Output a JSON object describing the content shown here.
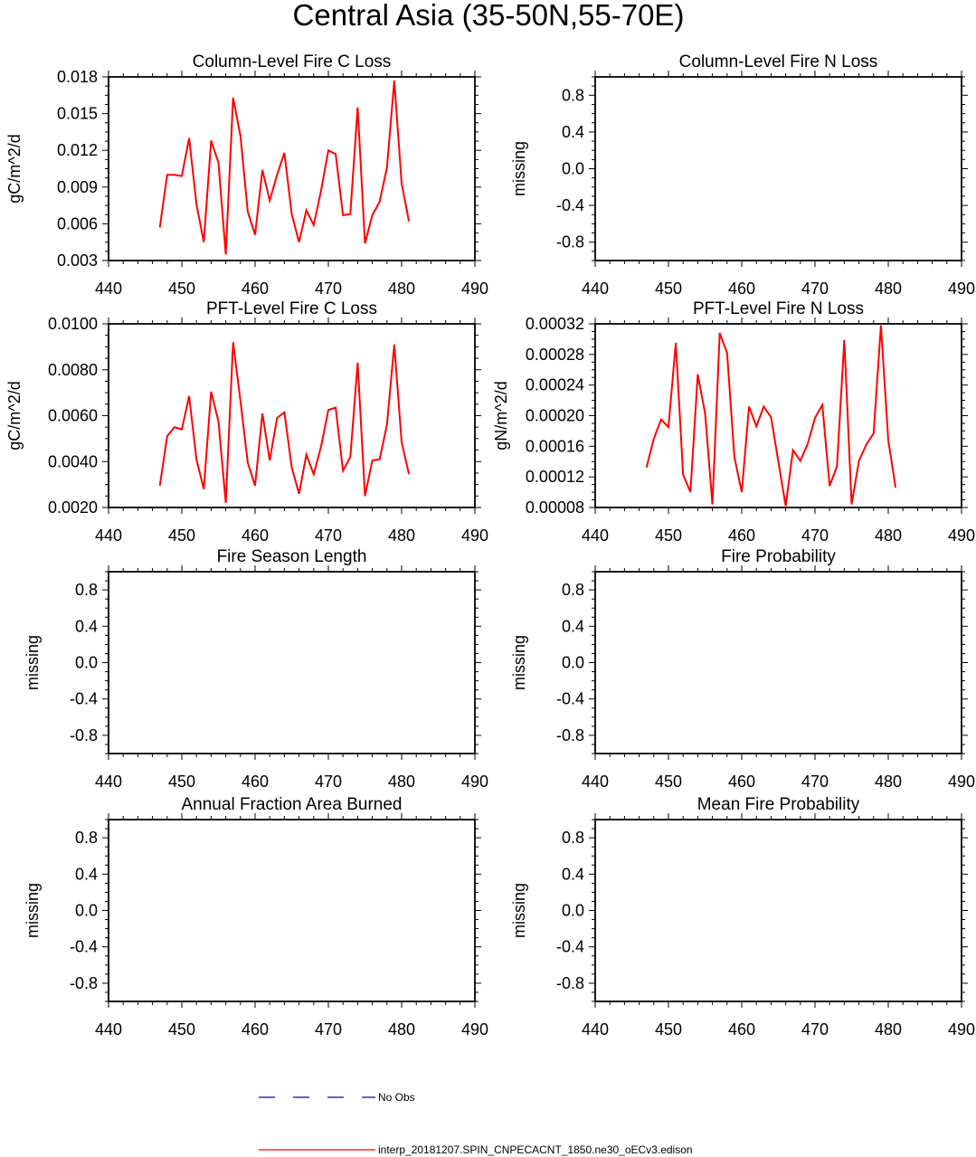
{
  "page_title": "Central Asia (35-50N,55-70E)",
  "legend": [
    {
      "label": "No Obs",
      "color": "#0000cc",
      "dash": true
    },
    {
      "label": "interp_20181207.SPIN_CNPECACNT_1850.ne30_oECv3.edison",
      "color": "#ff0000",
      "dash": false
    }
  ],
  "chart_data": [
    {
      "type": "line",
      "title": "Column-Level Fire C Loss",
      "ylabel": "gC/m^2/d",
      "xlim": [
        440,
        490
      ],
      "xticks": [
        440,
        450,
        460,
        470,
        480,
        490
      ],
      "ylim": [
        0.003,
        0.018
      ],
      "yticks": [
        0.003,
        0.006,
        0.009,
        0.012,
        0.015,
        0.018
      ],
      "ytick_labels": [
        "0.003",
        "0.006",
        "0.009",
        "0.012",
        "0.015",
        "0.018"
      ],
      "grid": false,
      "series": [
        {
          "color": "#ff0000",
          "x": [
            447,
            448,
            449,
            450,
            451,
            452,
            453,
            454,
            455,
            456,
            457,
            458,
            459,
            460,
            461,
            462,
            463,
            464,
            465,
            466,
            467,
            468,
            469,
            470,
            471,
            472,
            473,
            474,
            475,
            476,
            477,
            478,
            479,
            480,
            481
          ],
          "y": [
            0.0057,
            0.01,
            0.01,
            0.0099,
            0.013,
            0.0076,
            0.0045,
            0.0128,
            0.011,
            0.0035,
            0.0163,
            0.0132,
            0.007,
            0.0051,
            0.0104,
            0.0079,
            0.01,
            0.0118,
            0.0068,
            0.0045,
            0.0071,
            0.0059,
            0.0087,
            0.012,
            0.0117,
            0.0067,
            0.0068,
            0.0155,
            0.0044,
            0.0067,
            0.0078,
            0.0106,
            0.0177,
            0.0093,
            0.0062
          ]
        }
      ]
    },
    {
      "type": "line",
      "title": "Column-Level Fire N Loss",
      "ylabel": "missing",
      "xlim": [
        440,
        490
      ],
      "xticks": [
        440,
        450,
        460,
        470,
        480,
        490
      ],
      "ylim": [
        -1,
        1
      ],
      "yticks": [
        -0.8,
        -0.4,
        0.0,
        0.4,
        0.8
      ],
      "ytick_labels": [
        "-0.8",
        "-0.4",
        "0.0",
        "0.4",
        "0.8"
      ],
      "grid": false,
      "series": []
    },
    {
      "type": "line",
      "title": "PFT-Level Fire C Loss",
      "ylabel": "gC/m^2/d",
      "xlim": [
        440,
        490
      ],
      "xticks": [
        440,
        450,
        460,
        470,
        480,
        490
      ],
      "ylim": [
        0.002,
        0.01
      ],
      "yticks": [
        0.002,
        0.004,
        0.006,
        0.008,
        0.01
      ],
      "ytick_labels": [
        "0.0020",
        "0.0040",
        "0.0060",
        "0.0080",
        "0.0100"
      ],
      "grid": false,
      "series": [
        {
          "color": "#ff0000",
          "x": [
            447,
            448,
            449,
            450,
            451,
            452,
            453,
            454,
            455,
            456,
            457,
            458,
            459,
            460,
            461,
            462,
            463,
            464,
            465,
            466,
            467,
            468,
            469,
            470,
            471,
            472,
            473,
            474,
            475,
            476,
            477,
            478,
            479,
            480,
            481
          ],
          "y": [
            0.00295,
            0.0051,
            0.0055,
            0.0054,
            0.00685,
            0.0041,
            0.0028,
            0.00705,
            0.00575,
            0.0022,
            0.0092,
            0.00665,
            0.00395,
            0.00295,
            0.0061,
            0.00405,
            0.0059,
            0.00615,
            0.00375,
            0.0026,
            0.0043,
            0.00345,
            0.00465,
            0.00625,
            0.00635,
            0.0036,
            0.0042,
            0.0083,
            0.0025,
            0.00405,
            0.0041,
            0.0056,
            0.0091,
            0.00485,
            0.00345
          ]
        }
      ]
    },
    {
      "type": "line",
      "title": "PFT-Level Fire N Loss",
      "ylabel": "gN/m^2/d",
      "xlim": [
        440,
        490
      ],
      "xticks": [
        440,
        450,
        460,
        470,
        480,
        490
      ],
      "ylim": [
        8e-05,
        0.00032
      ],
      "yticks": [
        8e-05,
        0.00012,
        0.00016,
        0.0002,
        0.00024,
        0.00028,
        0.00032
      ],
      "ytick_labels": [
        "0.00008",
        "0.00012",
        "0.00016",
        "0.00020",
        "0.00024",
        "0.00028",
        "0.00032"
      ],
      "grid": false,
      "series": [
        {
          "color": "#ff0000",
          "x": [
            447,
            448,
            449,
            450,
            451,
            452,
            453,
            454,
            455,
            456,
            457,
            458,
            459,
            460,
            461,
            462,
            463,
            464,
            465,
            466,
            467,
            468,
            469,
            470,
            471,
            472,
            473,
            474,
            475,
            476,
            477,
            478,
            479,
            480,
            481
          ],
          "y": [
            0.000132,
            0.00017,
            0.000195,
            0.000185,
            0.000295,
            0.000123,
            0.0001,
            0.000254,
            0.000203,
            8.4e-05,
            0.000308,
            0.000282,
            0.000146,
            0.0001,
            0.000212,
            0.000186,
            0.000212,
            0.000198,
            0.00014,
            8.2e-05,
            0.000155,
            0.000141,
            0.000163,
            0.000197,
            0.000214,
            0.000108,
            0.000134,
            0.000299,
            8.4e-05,
            0.000141,
            0.000162,
            0.000177,
            0.000318,
            0.000168,
            0.000106
          ]
        }
      ]
    },
    {
      "type": "line",
      "title": "Fire Season Length",
      "ylabel": "missing",
      "xlim": [
        440,
        490
      ],
      "xticks": [
        440,
        450,
        460,
        470,
        480,
        490
      ],
      "ylim": [
        -1,
        1
      ],
      "yticks": [
        -0.8,
        -0.4,
        0.0,
        0.4,
        0.8
      ],
      "ytick_labels": [
        "-0.8",
        "-0.4",
        "0.0",
        "0.4",
        "0.8"
      ],
      "grid": false,
      "series": []
    },
    {
      "type": "line",
      "title": "Fire Probability",
      "ylabel": "missing",
      "xlim": [
        440,
        490
      ],
      "xticks": [
        440,
        450,
        460,
        470,
        480,
        490
      ],
      "ylim": [
        -1,
        1
      ],
      "yticks": [
        -0.8,
        -0.4,
        0.0,
        0.4,
        0.8
      ],
      "ytick_labels": [
        "-0.8",
        "-0.4",
        "0.0",
        "0.4",
        "0.8"
      ],
      "grid": false,
      "series": []
    },
    {
      "type": "line",
      "title": "Annual Fraction Area Burned",
      "ylabel": "missing",
      "xlim": [
        440,
        490
      ],
      "xticks": [
        440,
        450,
        460,
        470,
        480,
        490
      ],
      "ylim": [
        -1,
        1
      ],
      "yticks": [
        -0.8,
        -0.4,
        0.0,
        0.4,
        0.8
      ],
      "ytick_labels": [
        "-0.8",
        "-0.4",
        "0.0",
        "0.4",
        "0.8"
      ],
      "grid": false,
      "series": []
    },
    {
      "type": "line",
      "title": "Mean Fire Probability",
      "ylabel": "missing",
      "xlim": [
        440,
        490
      ],
      "xticks": [
        440,
        450,
        460,
        470,
        480,
        490
      ],
      "ylim": [
        -1,
        1
      ],
      "yticks": [
        -0.8,
        -0.4,
        0.0,
        0.4,
        0.8
      ],
      "ytick_labels": [
        "-0.8",
        "-0.4",
        "0.0",
        "0.4",
        "0.8"
      ],
      "grid": false,
      "series": []
    }
  ]
}
